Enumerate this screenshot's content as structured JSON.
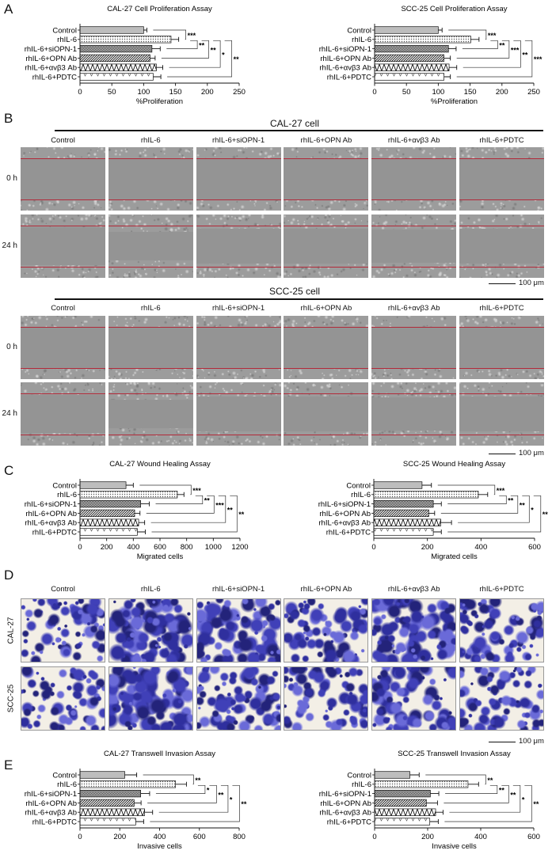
{
  "panels": {
    "A": "A",
    "B": "B",
    "C": "C",
    "D": "D",
    "E": "E"
  },
  "conditions": [
    "Control",
    "rhIL-6",
    "rhIL-6+siOPN-1",
    "rhIL-6+OPN Ab",
    "rhIL-6+αvβ3 Ab",
    "rhIL-6+PDTC"
  ],
  "wound": {
    "cal_title": "CAL-27 cell",
    "scc_title": "SCC-25 cell",
    "rows": [
      "0 h",
      "24 h"
    ]
  },
  "transwell": {
    "rows": [
      "CAL-27",
      "SCC-25"
    ]
  },
  "scale_bar": "100 μm",
  "colors": {
    "wound_line": "#b22a3a",
    "stain_dark": "#2f2f9e",
    "stain_light": "#6a6ad8",
    "control_bar": "#bdbdbd"
  },
  "chart_data": [
    {
      "type": "bar",
      "orientation": "horizontal",
      "title": "CAL-27 Cell Proliferation Assay",
      "xlabel": "%Proliferation",
      "ylabel": "",
      "categories": [
        "Control",
        "rhIL-6",
        "rhIL-6+siOPN-1",
        "rhIL-6+OPN Ab",
        "rhIL-6+αvβ3 Ab",
        "rhIL-6+PDTC"
      ],
      "values": [
        100,
        143,
        113,
        110,
        120,
        115
      ],
      "errors": [
        5,
        12,
        13,
        8,
        10,
        12
      ],
      "xlim": [
        0,
        250
      ],
      "xticks": [
        0,
        50,
        100,
        150,
        200,
        250
      ],
      "significance": [
        {
          "compare": [
            "Control",
            "rhIL-6"
          ],
          "label": "***"
        },
        {
          "compare": [
            "rhIL-6",
            "rhIL-6+siOPN-1"
          ],
          "label": "**"
        },
        {
          "compare": [
            "rhIL-6",
            "rhIL-6+OPN Ab"
          ],
          "label": "**"
        },
        {
          "compare": [
            "rhIL-6",
            "rhIL-6+αvβ3 Ab"
          ],
          "label": "*"
        },
        {
          "compare": [
            "rhIL-6",
            "rhIL-6+PDTC"
          ],
          "label": "**"
        }
      ]
    },
    {
      "type": "bar",
      "orientation": "horizontal",
      "title": "SCC-25 Cell Proliferation Assay",
      "xlabel": "%Proliferation",
      "ylabel": "",
      "categories": [
        "Control",
        "rhIL-6",
        "rhIL-6+siOPN-1",
        "rhIL-6+OPN Ab",
        "rhIL-6+αvβ3 Ab",
        "rhIL-6+PDTC"
      ],
      "values": [
        100,
        151,
        116,
        109,
        117,
        109
      ],
      "errors": [
        6,
        13,
        12,
        10,
        12,
        10
      ],
      "xlim": [
        0,
        250
      ],
      "xticks": [
        0,
        50,
        100,
        150,
        200,
        250
      ],
      "significance": [
        {
          "compare": [
            "Control",
            "rhIL-6"
          ],
          "label": "***"
        },
        {
          "compare": [
            "rhIL-6",
            "rhIL-6+siOPN-1"
          ],
          "label": "**"
        },
        {
          "compare": [
            "rhIL-6",
            "rhIL-6+OPN Ab"
          ],
          "label": "***"
        },
        {
          "compare": [
            "rhIL-6",
            "rhIL-6+αvβ3 Ab"
          ],
          "label": "**"
        },
        {
          "compare": [
            "rhIL-6",
            "rhIL-6+PDTC"
          ],
          "label": "***"
        }
      ]
    },
    {
      "type": "bar",
      "orientation": "horizontal",
      "title": "CAL-27 Wound Healing Assay",
      "xlabel": "Migrated cells",
      "ylabel": "",
      "categories": [
        "Control",
        "rhIL-6",
        "rhIL-6+siOPN-1",
        "rhIL-6+OPN Ab",
        "rhIL-6+αvβ3 Ab",
        "rhIL-6+PDTC"
      ],
      "values": [
        345,
        730,
        455,
        410,
        440,
        430
      ],
      "errors": [
        55,
        50,
        65,
        40,
        45,
        60
      ],
      "xlim": [
        0,
        1200
      ],
      "xticks": [
        0,
        200,
        400,
        600,
        800,
        1000,
        1200
      ],
      "significance": [
        {
          "compare": [
            "Control",
            "rhIL-6"
          ],
          "label": "***"
        },
        {
          "compare": [
            "rhIL-6",
            "rhIL-6+siOPN-1"
          ],
          "label": "**"
        },
        {
          "compare": [
            "rhIL-6",
            "rhIL-6+OPN Ab"
          ],
          "label": "***"
        },
        {
          "compare": [
            "rhIL-6",
            "rhIL-6+αvβ3 Ab"
          ],
          "label": "**"
        },
        {
          "compare": [
            "rhIL-6",
            "rhIL-6+PDTC"
          ],
          "label": "**"
        }
      ]
    },
    {
      "type": "bar",
      "orientation": "horizontal",
      "title": "SCC-25 Wound Healing Assay",
      "xlabel": "Migrated cells",
      "ylabel": "",
      "categories": [
        "Control",
        "rhIL-6",
        "rhIL-6+siOPN-1",
        "rhIL-6+OPN Ab",
        "rhIL-6+αvβ3 Ab",
        "rhIL-6+PDTC"
      ],
      "values": [
        180,
        390,
        222,
        205,
        250,
        222
      ],
      "errors": [
        35,
        35,
        30,
        22,
        40,
        30
      ],
      "xlim": [
        0,
        600
      ],
      "xticks": [
        0,
        200,
        400,
        600
      ],
      "significance": [
        {
          "compare": [
            "Control",
            "rhIL-6"
          ],
          "label": "***"
        },
        {
          "compare": [
            "rhIL-6",
            "rhIL-6+siOPN-1"
          ],
          "label": "**"
        },
        {
          "compare": [
            "rhIL-6",
            "rhIL-6+OPN Ab"
          ],
          "label": "**"
        },
        {
          "compare": [
            "rhIL-6",
            "rhIL-6+αvβ3 Ab"
          ],
          "label": "*"
        },
        {
          "compare": [
            "rhIL-6",
            "rhIL-6+PDTC"
          ],
          "label": "**"
        }
      ]
    },
    {
      "type": "bar",
      "orientation": "horizontal",
      "title": "CAL-27 Transwell Invasion Assay",
      "xlabel": "Invasive cells",
      "ylabel": "",
      "categories": [
        "Control",
        "rhIL-6",
        "rhIL-6+siOPN-1",
        "rhIL-6+OPN Ab",
        "rhIL-6+αvβ3 Ab",
        "rhIL-6+PDTC"
      ],
      "values": [
        225,
        480,
        305,
        272,
        325,
        280
      ],
      "errors": [
        60,
        55,
        45,
        35,
        40,
        40
      ],
      "xlim": [
        0,
        800
      ],
      "xticks": [
        0,
        200,
        400,
        600,
        800
      ],
      "significance": [
        {
          "compare": [
            "Control",
            "rhIL-6"
          ],
          "label": "**"
        },
        {
          "compare": [
            "rhIL-6",
            "rhIL-6+siOPN-1"
          ],
          "label": "*"
        },
        {
          "compare": [
            "rhIL-6",
            "rhIL-6+OPN Ab"
          ],
          "label": "**"
        },
        {
          "compare": [
            "rhIL-6",
            "rhIL-6+αvβ3 Ab"
          ],
          "label": "*"
        },
        {
          "compare": [
            "rhIL-6",
            "rhIL-6+PDTC"
          ],
          "label": "**"
        }
      ]
    },
    {
      "type": "bar",
      "orientation": "horizontal",
      "title": "SCC-25 Transwell Invasion Assay",
      "xlabel": "Invasive cells",
      "ylabel": "",
      "categories": [
        "Control",
        "rhIL-6",
        "rhIL-6+siOPN-1",
        "rhIL-6+OPN Ab",
        "rhIL-6+αvβ3 Ab",
        "rhIL-6+PDTC"
      ],
      "values": [
        133,
        352,
        210,
        195,
        230,
        208
      ],
      "errors": [
        35,
        40,
        32,
        42,
        28,
        32
      ],
      "xlim": [
        0,
        600
      ],
      "xticks": [
        0,
        200,
        400,
        600
      ],
      "significance": [
        {
          "compare": [
            "Control",
            "rhIL-6"
          ],
          "label": "**"
        },
        {
          "compare": [
            "rhIL-6",
            "rhIL-6+siOPN-1"
          ],
          "label": "**"
        },
        {
          "compare": [
            "rhIL-6",
            "rhIL-6+OPN Ab"
          ],
          "label": "**"
        },
        {
          "compare": [
            "rhIL-6",
            "rhIL-6+αvβ3 Ab"
          ],
          "label": "*"
        },
        {
          "compare": [
            "rhIL-6",
            "rhIL-6+PDTC"
          ],
          "label": "**"
        }
      ]
    }
  ]
}
